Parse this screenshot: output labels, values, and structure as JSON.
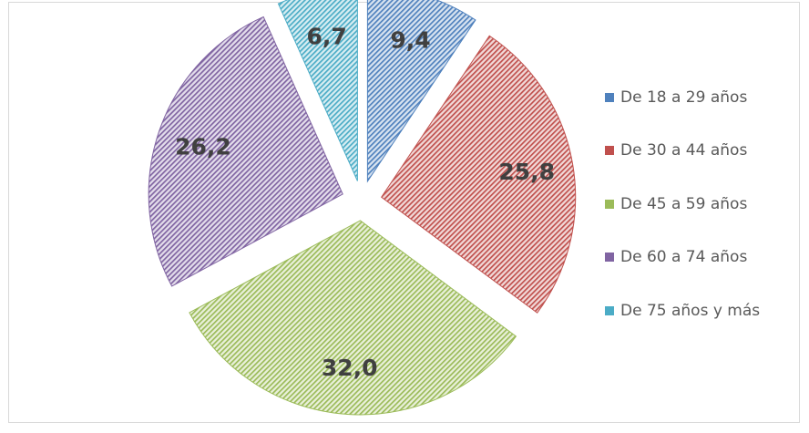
{
  "chart_data": {
    "type": "pie",
    "exploded": true,
    "categories": [
      "De 18 a 29 años",
      "De 30 a 44 años",
      "De 45 a 59 años",
      "De 60 a 74 años",
      "De 75 años y más"
    ],
    "values": [
      9.4,
      25.8,
      32.0,
      26.2,
      6.7
    ],
    "data_labels": [
      "9,4",
      "25,8",
      "32,0",
      "26,2",
      "6,7"
    ],
    "colors": [
      "#4f81bd",
      "#c0504d",
      "#9bbb59",
      "#8064a2",
      "#4bacc6"
    ],
    "fill_pattern": "diagonal-hatch",
    "legend_position": "right"
  }
}
